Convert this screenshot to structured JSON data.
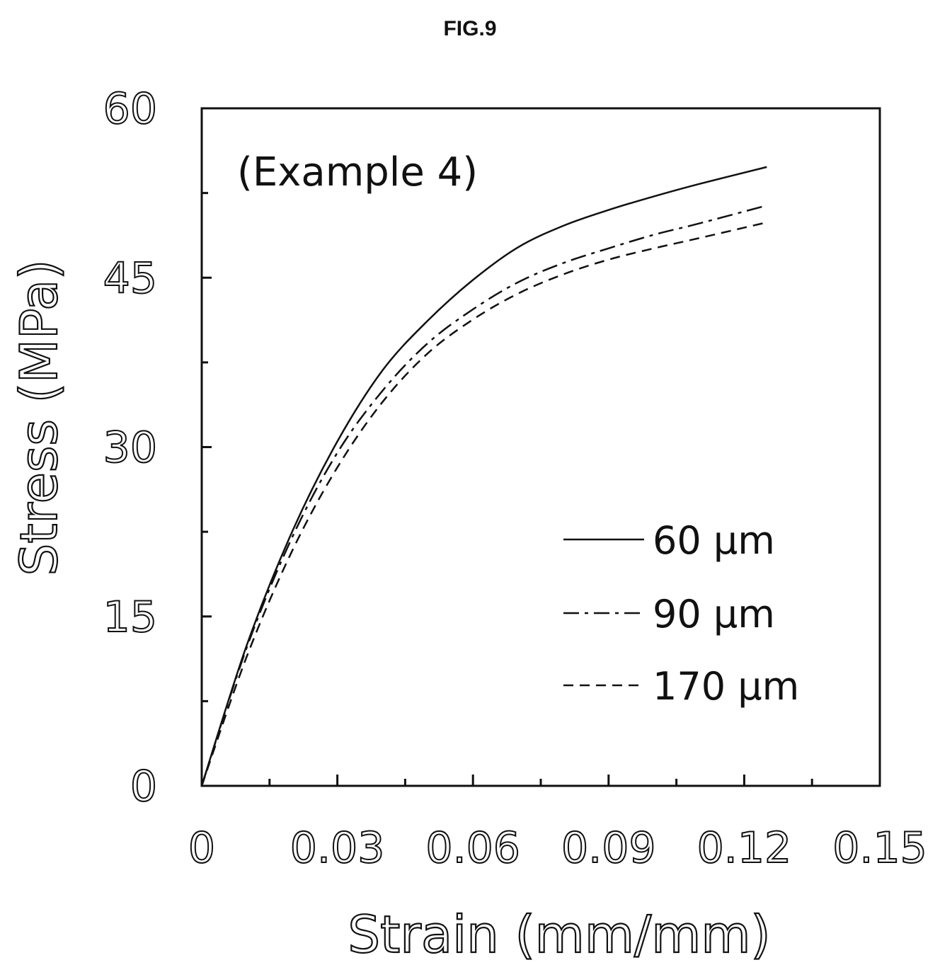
{
  "figure_label": "FIG.9",
  "chart_data": {
    "type": "line",
    "title": "",
    "annotation": "(Example 4)",
    "xlabel": "Strain (mm/mm)",
    "ylabel": "Stress (MPa)",
    "xlim": [
      0,
      0.15
    ],
    "ylim": [
      0,
      60
    ],
    "xticks": [
      0,
      0.03,
      0.06,
      0.09,
      0.12,
      0.15
    ],
    "xtick_labels": [
      "0",
      "0.03",
      "0.06",
      "0.09",
      "0.12",
      "0.15"
    ],
    "yticks": [
      0,
      15,
      30,
      45,
      60
    ],
    "ytick_labels": [
      "0",
      "15",
      "30",
      "45",
      "60"
    ],
    "grid": false,
    "legend_position": "bottom-right",
    "series": [
      {
        "name": "60 μm",
        "style": "solid",
        "x": [
          0,
          0.01,
          0.02,
          0.03,
          0.04,
          0.05,
          0.06,
          0.07,
          0.08,
          0.09,
          0.1,
          0.11,
          0.125
        ],
        "y": [
          0,
          12.5,
          22.5,
          30.5,
          36.8,
          41.2,
          44.8,
          47.7,
          49.6,
          51.0,
          52.2,
          53.3,
          54.8
        ]
      },
      {
        "name": "90 μm",
        "style": "dash-dot",
        "x": [
          0,
          0.01,
          0.02,
          0.03,
          0.04,
          0.05,
          0.06,
          0.07,
          0.08,
          0.09,
          0.1,
          0.11,
          0.125
        ],
        "y": [
          0,
          12.3,
          22.0,
          29.5,
          35.0,
          39.2,
          42.2,
          44.6,
          46.3,
          47.6,
          48.8,
          49.8,
          51.4
        ]
      },
      {
        "name": "170 μm",
        "style": "dashed",
        "x": [
          0,
          0.01,
          0.02,
          0.03,
          0.04,
          0.05,
          0.06,
          0.07,
          0.08,
          0.09,
          0.1,
          0.11,
          0.125
        ],
        "y": [
          0,
          11.5,
          20.8,
          28.2,
          34.0,
          38.3,
          41.3,
          43.6,
          45.3,
          46.6,
          47.6,
          48.5,
          49.9
        ]
      }
    ],
    "colors": {
      "line": "#111111",
      "background": "#ffffff"
    }
  }
}
